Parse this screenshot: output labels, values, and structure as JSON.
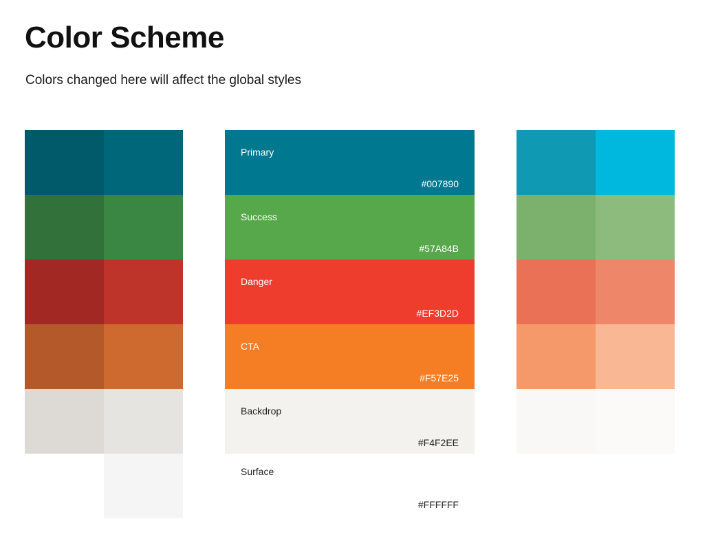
{
  "header": {
    "title": "Color Scheme",
    "subtitle": "Colors changed here will affect the global styles"
  },
  "swatches": [
    {
      "name": "Primary",
      "hex": "#007890",
      "color": "#007890",
      "text_color": "#ffffff"
    },
    {
      "name": "Success",
      "hex": "#57A84B",
      "color": "#57A84B",
      "text_color": "#ffffff"
    },
    {
      "name": "Danger",
      "hex": "#EF3D2D",
      "color": "#EF3D2D",
      "text_color": "#ffffff"
    },
    {
      "name": "CTA",
      "hex": "#F57E25",
      "color": "#F57E25",
      "text_color": "#ffffff"
    },
    {
      "name": "Backdrop",
      "hex": "#F4F2EE",
      "color": "#F4F2EE",
      "text_color": "#222222"
    },
    {
      "name": "Surface",
      "hex": "#FFFFFF",
      "color": "#FFFFFF",
      "text_color": "#222222"
    }
  ],
  "shades": [
    [
      "#005A6A",
      "#00677A"
    ],
    [
      "#327139",
      "#3A8643"
    ],
    [
      "#A22824",
      "#BF342A"
    ],
    [
      "#B45A2A",
      "#CE6A30"
    ],
    [
      "#DDDAD5",
      "#E6E4E0"
    ],
    [
      "#FFFFFF",
      "#F5F5F5"
    ]
  ],
  "tints": [
    [
      "#0F99B2",
      "#00B8DD"
    ],
    [
      "#7BB06D",
      "#8DBB7E"
    ],
    [
      "#EA7156",
      "#EE866A"
    ],
    [
      "#F5996A",
      "#F9B793"
    ],
    [
      "#F9F8F6",
      "#FBFAF9"
    ]
  ]
}
